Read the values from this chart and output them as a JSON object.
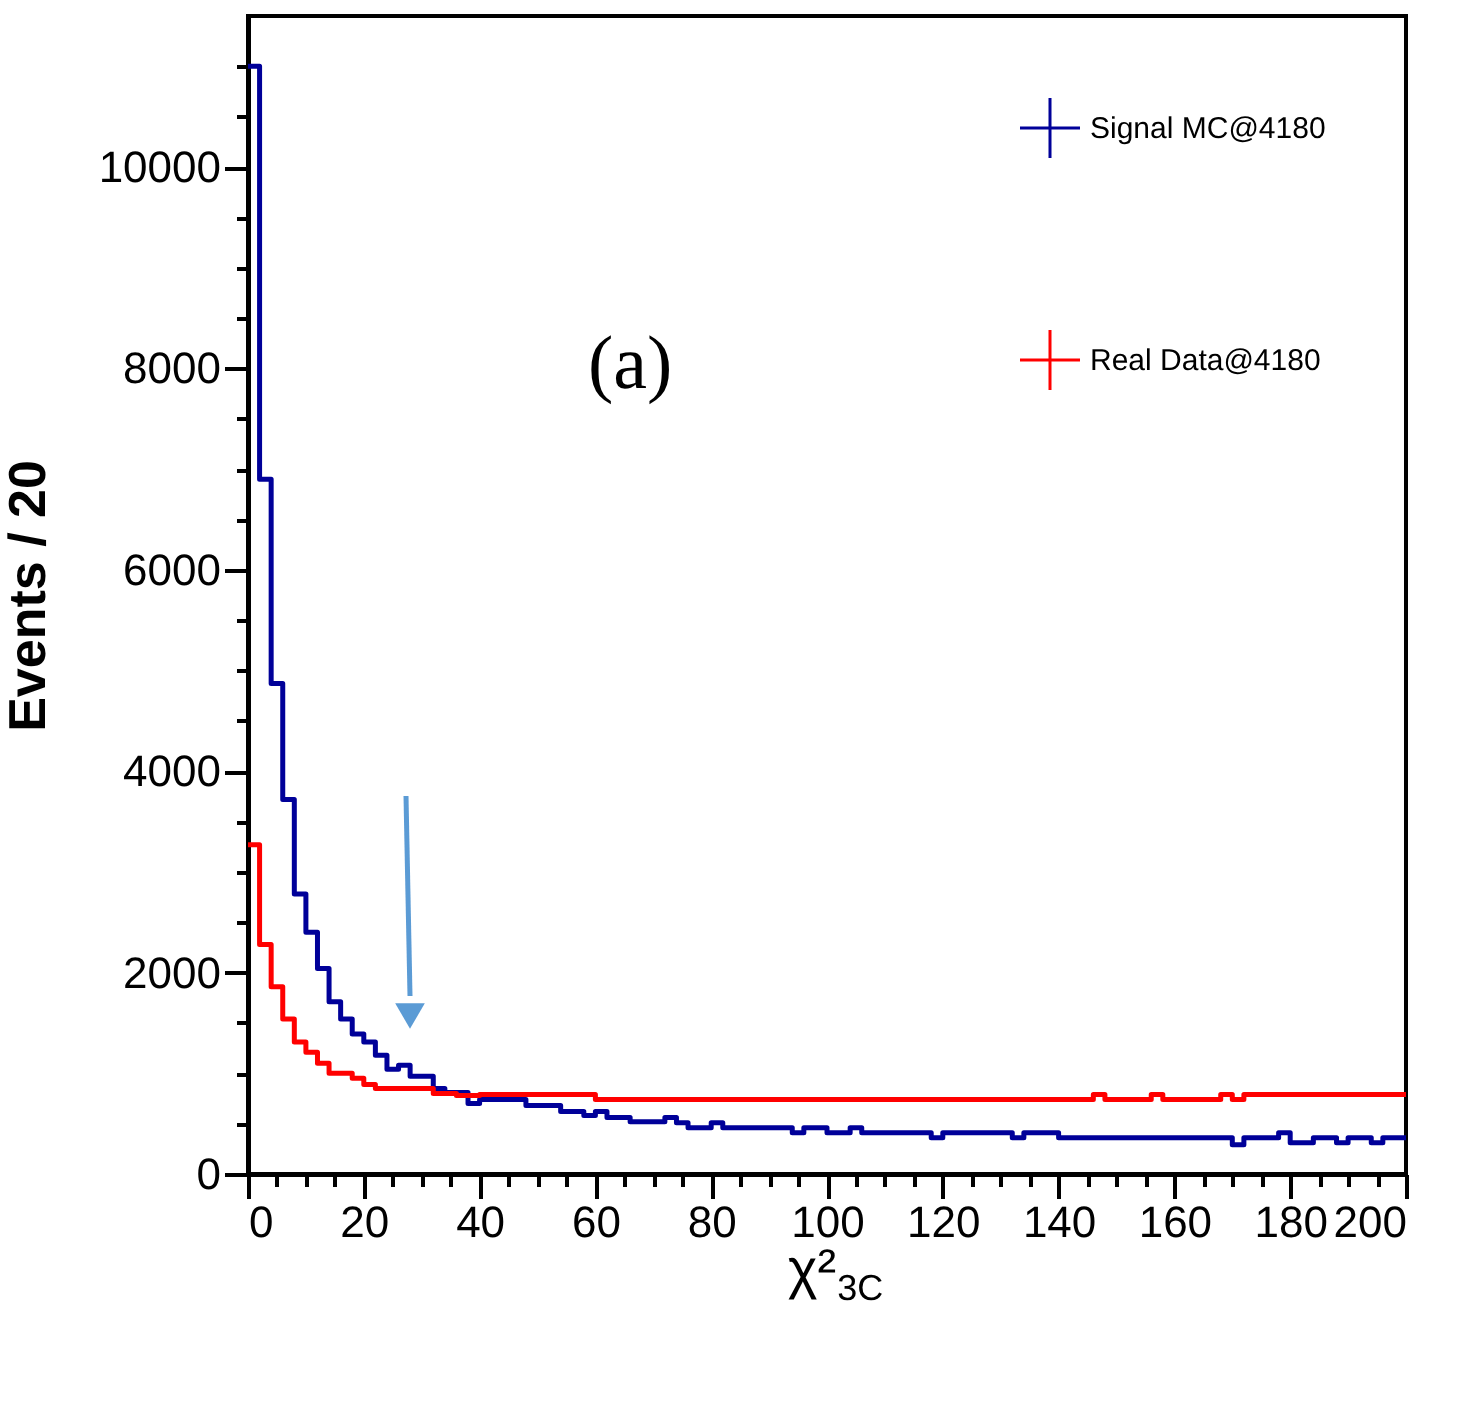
{
  "chart_data": {
    "type": "step",
    "xlabel": "χ²$_{3C}$",
    "ylabel": "Events / 20",
    "annotations": [
      "(a)"
    ],
    "series": [
      {
        "name": "Signal MC@4180",
        "color": "#000099",
        "x": [
          0,
          2,
          4,
          6,
          8,
          10,
          12,
          14,
          16,
          18,
          20,
          22,
          24,
          26,
          28,
          32,
          34,
          38,
          40,
          44,
          48,
          54,
          58,
          60,
          62,
          66,
          72,
          74,
          76,
          80,
          82,
          94,
          96,
          100,
          104,
          106,
          118,
          120,
          132,
          134,
          140,
          170,
          172,
          178,
          180,
          184,
          188,
          190,
          194,
          196,
          200
        ],
        "values": [
          11000,
          6900,
          4870,
          3720,
          2780,
          2400,
          2040,
          1710,
          1540,
          1390,
          1310,
          1180,
          1040,
          1080,
          970,
          850,
          810,
          700,
          740,
          740,
          680,
          620,
          580,
          620,
          560,
          520,
          560,
          510,
          460,
          510,
          460,
          410,
          460,
          410,
          460,
          410,
          360,
          410,
          360,
          410,
          360,
          290,
          360,
          410,
          310,
          360,
          310,
          360,
          310,
          360,
          360
        ]
      },
      {
        "name": "Real Data@4180",
        "color": "#ff0000",
        "x": [
          0,
          2,
          4,
          6,
          8,
          10,
          12,
          14,
          18,
          20,
          22,
          32,
          36,
          40,
          60,
          146,
          148,
          156,
          158,
          168,
          170,
          172,
          200
        ],
        "values": [
          3270,
          2280,
          1860,
          1540,
          1310,
          1210,
          1100,
          1000,
          950,
          890,
          850,
          800,
          780,
          790,
          740,
          790,
          740,
          790,
          740,
          790,
          740,
          790,
          790
        ]
      }
    ],
    "xlim": [
      0,
      200
    ],
    "ylim": [
      0,
      11500
    ],
    "xticks": [
      0,
      {
        "value": 5,
        "label": null
      },
      {
        "value": 10,
        "label": null
      },
      {
        "value": 15,
        "label": null
      },
      20,
      {
        "value": 25,
        "label": null
      },
      {
        "value": 30,
        "label": null
      },
      {
        "value": 35,
        "label": null
      },
      40,
      {
        "value": 45,
        "label": null
      },
      {
        "value": 50,
        "label": null
      },
      {
        "value": 55,
        "label": null
      },
      60,
      {
        "value": 65,
        "label": null
      },
      {
        "value": 70,
        "label": null
      },
      {
        "value": 75,
        "label": null
      },
      80,
      {
        "value": 85,
        "label": null
      },
      {
        "value": 90,
        "label": null
      },
      {
        "value": 95,
        "label": null
      },
      100,
      {
        "value": 105,
        "label": null
      },
      {
        "value": 110,
        "label": null
      },
      {
        "value": 115,
        "label": null
      },
      120,
      {
        "value": 125,
        "label": null
      },
      {
        "value": 130,
        "label": null
      },
      {
        "value": 135,
        "label": null
      },
      140,
      {
        "value": 145,
        "label": null
      },
      {
        "value": 150,
        "label": null
      },
      {
        "value": 155,
        "label": null
      },
      160,
      {
        "value": 165,
        "label": null
      },
      {
        "value": 170,
        "label": null
      },
      {
        "value": 175,
        "label": null
      },
      180,
      {
        "value": 185,
        "label": null
      },
      {
        "value": 190,
        "label": null
      },
      {
        "value": 195,
        "label": null
      },
      200
    ],
    "yticks": [
      0,
      {
        "value": 500,
        "label": null
      },
      {
        "value": 1000,
        "label": null
      },
      {
        "value": 1500,
        "label": null
      },
      2000,
      {
        "value": 2500,
        "label": null
      },
      {
        "value": 3000,
        "label": null
      },
      {
        "value": 3500,
        "label": null
      },
      4000,
      {
        "value": 4500,
        "label": null
      },
      {
        "value": 5000,
        "label": null
      },
      {
        "value": 5500,
        "label": null
      },
      6000,
      {
        "value": 6500,
        "label": null
      },
      {
        "value": 7000,
        "label": null
      },
      {
        "value": 7500,
        "label": null
      },
      8000,
      {
        "value": 8500,
        "label": null
      },
      {
        "value": 9000,
        "label": null
      },
      {
        "value": 9500,
        "label": null
      },
      10000,
      {
        "value": 10500,
        "label": null
      },
      {
        "value": 11000,
        "label": null
      }
    ],
    "grid": false,
    "legend": "top right",
    "marker": "none",
    "line_style": "solid"
  }
}
